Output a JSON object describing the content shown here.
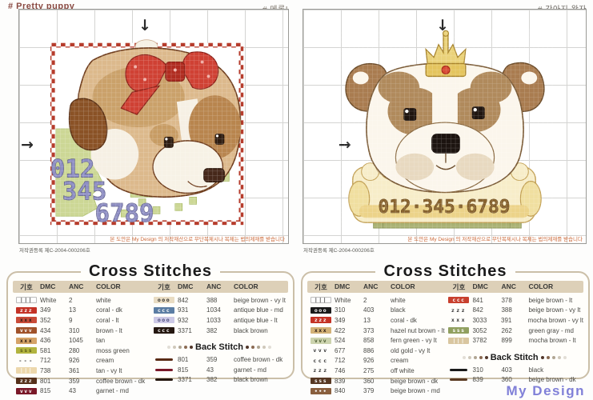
{
  "page": {
    "left_title": "# Pretty puppy",
    "left_subtitle": "# 메롱!",
    "right_title": "# 강아지 왕자",
    "footer_logo": "My Design"
  },
  "arrows": {
    "down": "↓",
    "right": "→"
  },
  "charts": {
    "left": {
      "registration": "저작권등록 제C-2004-000206호",
      "copyright_notice": "본 도안은 My Design 의 저작재산으로 무단복제시나 복제는 법의제재를 받습니다",
      "numbers_line1": "012",
      "numbers_line2": "345",
      "numbers_line3": "6789"
    },
    "right": {
      "registration": "저작권등록 제C-2004-000206호",
      "copyright_notice": "본 도안은 My Design 의 저작재산으로 무단복제시나 복제는 법의제재를 받습니다",
      "numbers": "012·345·6789"
    }
  },
  "tables": [
    {
      "title": "Cross Stitches",
      "headers": [
        "기호",
        "DMC",
        "ANC",
        "COLOR"
      ],
      "back_stitch_title": "Back Stitch",
      "colA": [
        {
          "sym": "|||",
          "bg": "#ffffff",
          "fg": "#333333",
          "border": true,
          "dmc": "White",
          "anc": "2",
          "color": "white"
        },
        {
          "sym": "zzz",
          "bg": "#c43225",
          "fg": "#ffffff",
          "border": false,
          "dmc": "349",
          "anc": "13",
          "color": "coral - dk"
        },
        {
          "sym": "xxx",
          "bg": "#c94b38",
          "fg": "#2a1a12",
          "border": false,
          "dmc": "352",
          "anc": "9",
          "color": "coral - lt"
        },
        {
          "sym": "vvv",
          "bg": "#a0522a",
          "fg": "#ffffff",
          "border": false,
          "dmc": "434",
          "anc": "310",
          "color": "brown - lt"
        },
        {
          "sym": "xxx",
          "bg": "#d5a368",
          "fg": "#2a1a12",
          "border": false,
          "dmc": "436",
          "anc": "1045",
          "color": "tan"
        },
        {
          "sym": "sss",
          "bg": "#b2b43f",
          "fg": "#5a5a18",
          "border": false,
          "dmc": "581",
          "anc": "280",
          "color": "moss green"
        },
        {
          "sym": "---",
          "bg": "",
          "fg": "#333333",
          "border": false,
          "dmc": "712",
          "anc": "926",
          "color": "cream"
        },
        {
          "sym": "|||",
          "bg": "#ecd7ab",
          "fg": "#ffffff",
          "border": false,
          "dmc": "738",
          "anc": "361",
          "color": "tan - vy lt"
        },
        {
          "sym": "zzz",
          "bg": "#55301a",
          "fg": "#ffffff",
          "border": false,
          "dmc": "801",
          "anc": "359",
          "color": "coffee brown - dk"
        },
        {
          "sym": "vvv",
          "bg": "#7a1828",
          "fg": "#ffffff",
          "border": false,
          "dmc": "815",
          "anc": "43",
          "color": "garnet - md"
        }
      ],
      "colB": [
        {
          "sym": "ooo",
          "bg": "#e9dcc3",
          "fg": "#2a2a28",
          "border": false,
          "dmc": "842",
          "anc": "388",
          "color": "beige brown - vy lt"
        },
        {
          "sym": "ccc",
          "bg": "#5b7da3",
          "fg": "#ffffff",
          "border": false,
          "dmc": "931",
          "anc": "1034",
          "color": "antique blue - md"
        },
        {
          "sym": "ooo",
          "bg": "#ccc9e6",
          "fg": "#4a4a7a",
          "border": false,
          "dmc": "932",
          "anc": "1033",
          "color": "antique blue - lt"
        },
        {
          "sym": "ccc",
          "bg": "#241710",
          "fg": "#ffffff",
          "border": false,
          "dmc": "3371",
          "anc": "382",
          "color": "black brown"
        }
      ],
      "back": [
        {
          "line": "#5a2b15",
          "dmc": "801",
          "anc": "359",
          "color": "coffee brown - dk"
        },
        {
          "line": "#7a1828",
          "dmc": "815",
          "anc": "43",
          "color": "garnet - md"
        },
        {
          "line": "#241710",
          "dmc": "3371",
          "anc": "382",
          "color": "black brown"
        }
      ]
    },
    {
      "title": "Cross Stitches",
      "headers": [
        "기호",
        "DMC",
        "ANC",
        "COLOR"
      ],
      "back_stitch_title": "Back Stitch",
      "colA": [
        {
          "sym": "|||",
          "bg": "#ffffff",
          "fg": "#333333",
          "border": true,
          "dmc": "White",
          "anc": "2",
          "color": "white"
        },
        {
          "sym": "ooo",
          "bg": "#1a1a1a",
          "fg": "#ffffff",
          "border": false,
          "dmc": "310",
          "anc": "403",
          "color": "black"
        },
        {
          "sym": "zzz",
          "bg": "#c43225",
          "fg": "#ffffff",
          "border": false,
          "dmc": "349",
          "anc": "13",
          "color": "coral - dk"
        },
        {
          "sym": "xxx",
          "bg": "#d2b176",
          "fg": "#2a1a12",
          "border": false,
          "dmc": "422",
          "anc": "373",
          "color": "hazel nut brown - lt"
        },
        {
          "sym": "vvv",
          "bg": "#ccd3ad",
          "fg": "#4a5a30",
          "border": false,
          "dmc": "524",
          "anc": "858",
          "color": "fern green - vy lt"
        },
        {
          "sym": "vvv",
          "bg": "",
          "fg": "#333333",
          "border": false,
          "dmc": "677",
          "anc": "886",
          "color": "old gold - vy lt"
        },
        {
          "sym": "ccc",
          "bg": "",
          "fg": "#333333",
          "border": false,
          "dmc": "712",
          "anc": "926",
          "color": "cream"
        },
        {
          "sym": "zzz",
          "bg": "",
          "fg": "#333333",
          "border": false,
          "dmc": "746",
          "anc": "275",
          "color": "off white"
        },
        {
          "sym": "sss",
          "bg": "#573823",
          "fg": "#ffffff",
          "border": false,
          "dmc": "839",
          "anc": "360",
          "color": "beige brown - dk"
        },
        {
          "sym": "•••",
          "bg": "#8a5f3e",
          "fg": "#ffffff",
          "border": false,
          "dmc": "840",
          "anc": "379",
          "color": "beige brown - md"
        }
      ],
      "colB": [
        {
          "sym": "ccc",
          "bg": "#c8402e",
          "fg": "#ffffff",
          "border": false,
          "dmc": "841",
          "anc": "378",
          "color": "beige brown - lt"
        },
        {
          "sym": "zzz",
          "bg": "",
          "fg": "#333333",
          "border": false,
          "dmc": "842",
          "anc": "388",
          "color": "beige brown - vy lt"
        },
        {
          "sym": "xxx",
          "bg": "",
          "fg": "#333333",
          "border": false,
          "dmc": "3033",
          "anc": "391",
          "color": "mocha brown - vy lt"
        },
        {
          "sym": "sss",
          "bg": "#91a060",
          "fg": "#ffffff",
          "border": false,
          "dmc": "3052",
          "anc": "262",
          "color": "green gray - md"
        },
        {
          "sym": "|||",
          "bg": "#d9c6a0",
          "fg": "#ffffff",
          "border": false,
          "dmc": "3782",
          "anc": "899",
          "color": "mocha brown - lt"
        }
      ],
      "back": [
        {
          "line": "#1a1a1a",
          "dmc": "310",
          "anc": "403",
          "color": "black"
        },
        {
          "line": "#5a3a22",
          "dmc": "839",
          "anc": "360",
          "color": "beige brown - dk"
        }
      ]
    }
  ]
}
